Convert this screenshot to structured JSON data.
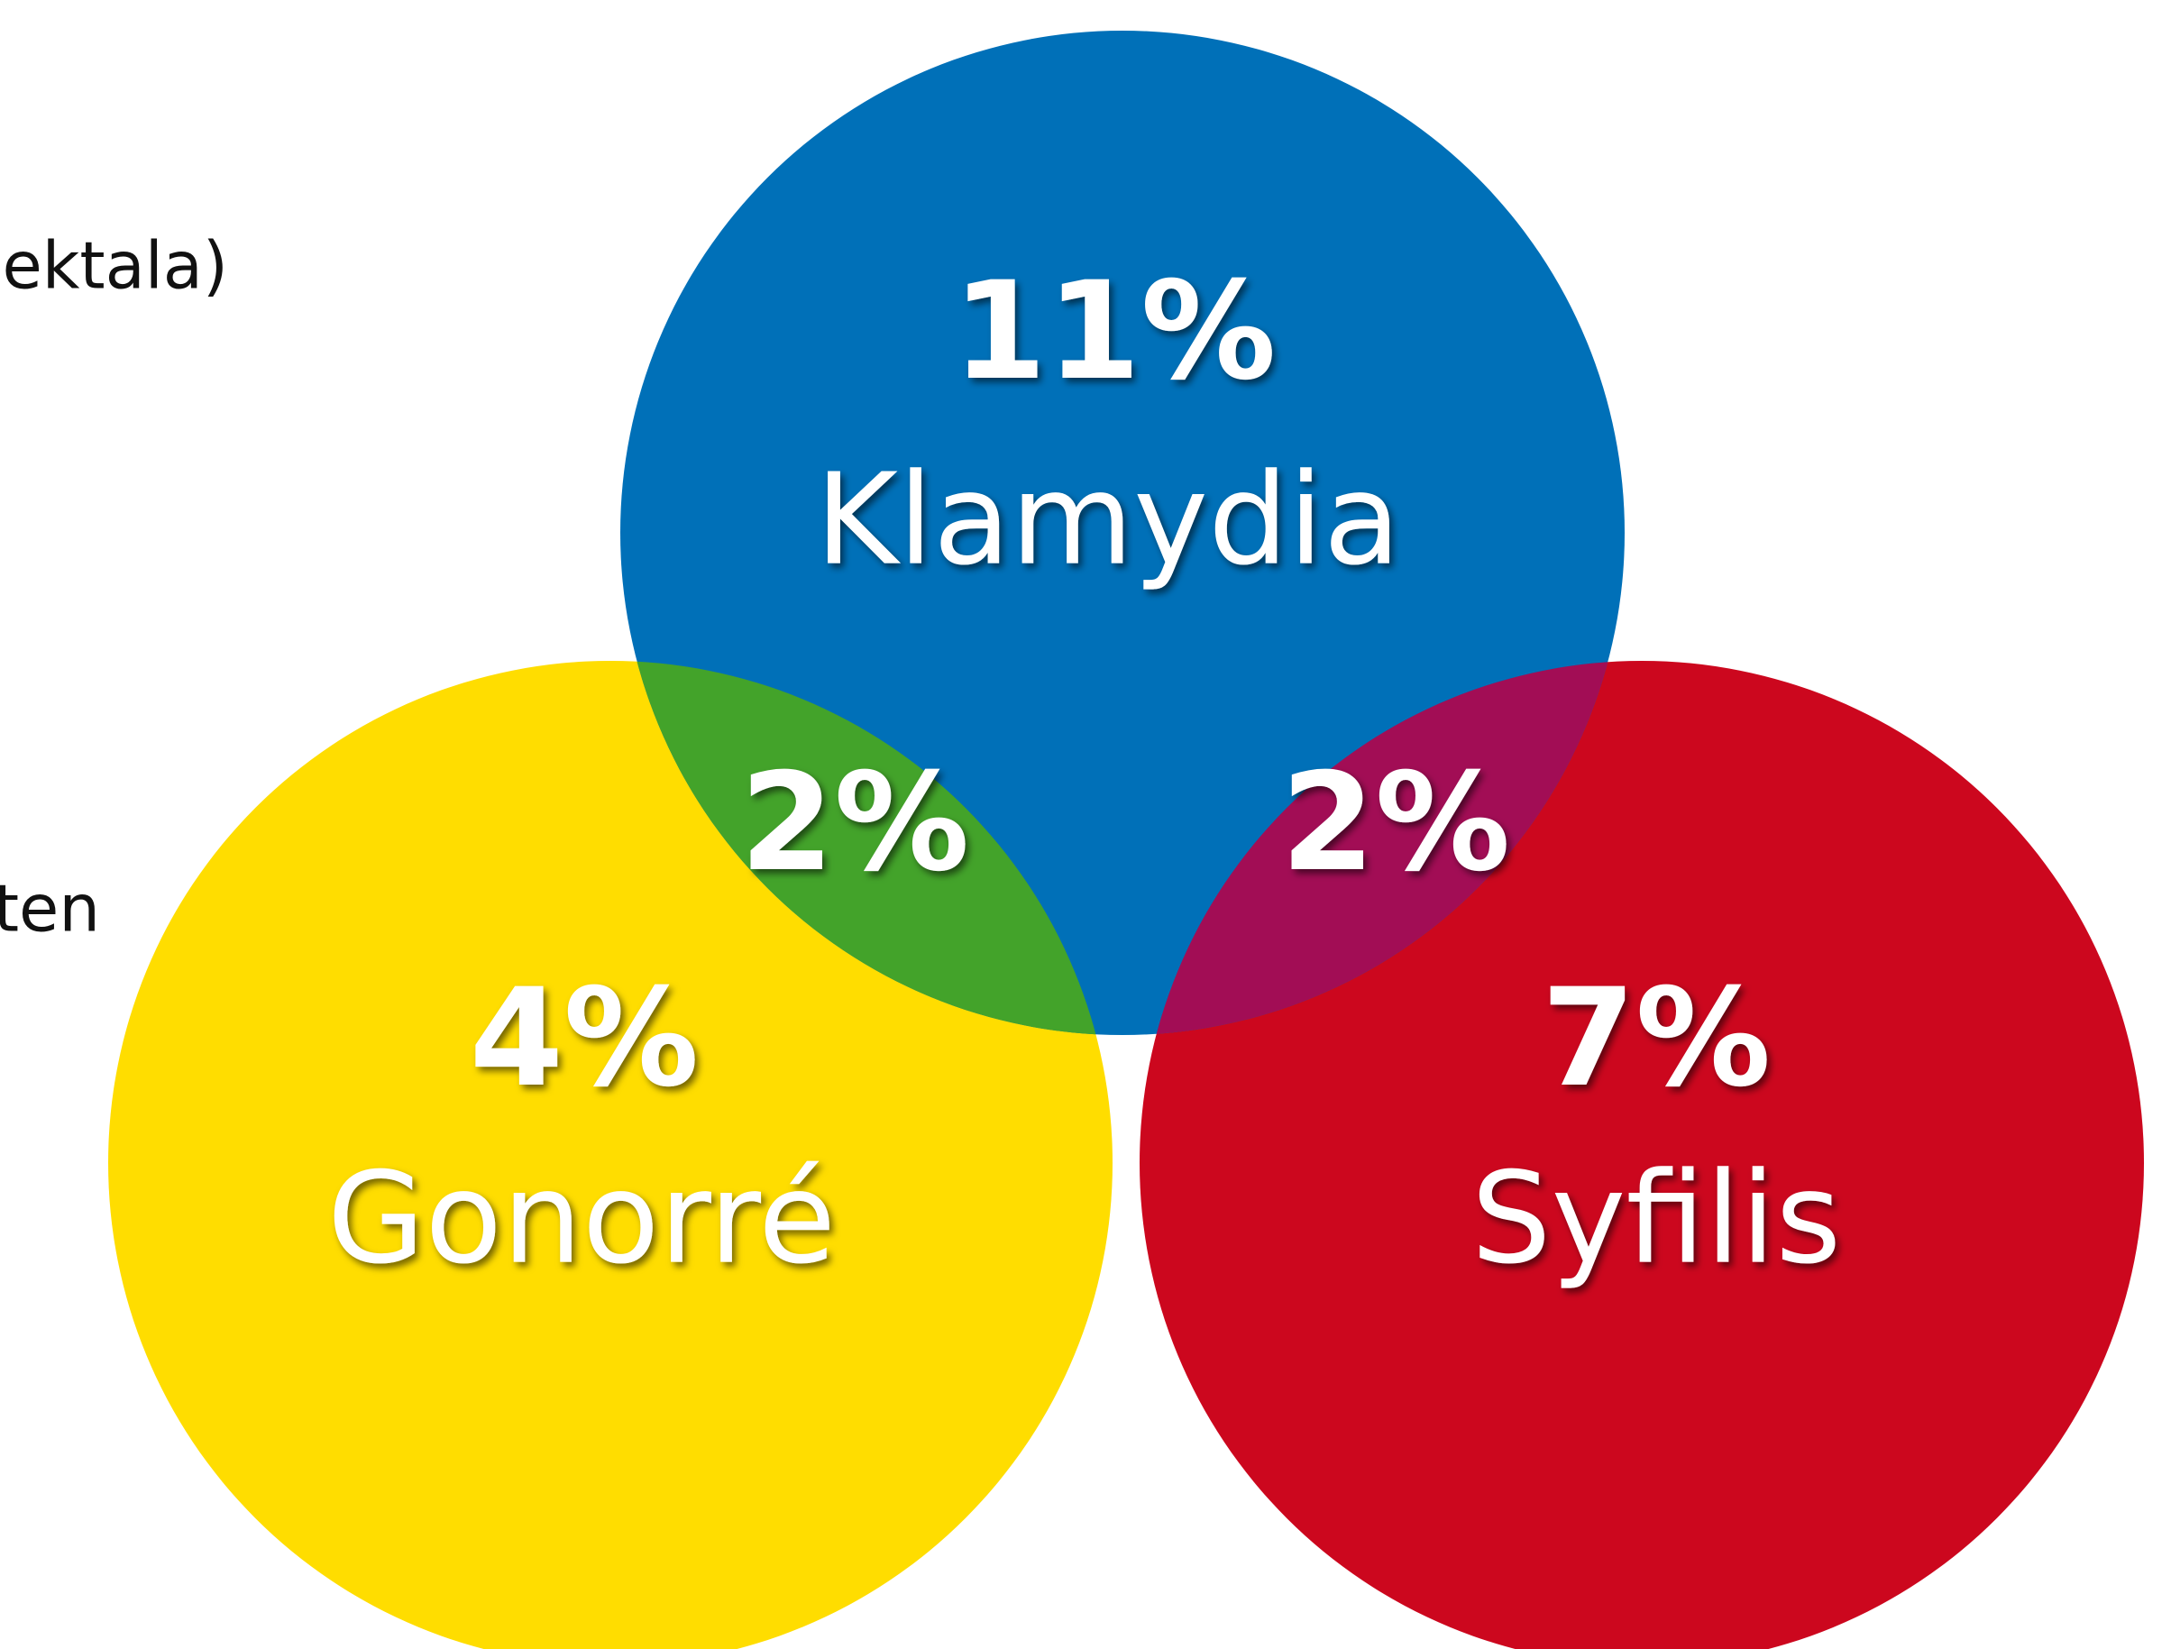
{
  "left_text": [
    "ektala)",
    "ten"
  ],
  "sets": [
    {
      "label": "Klamydia",
      "value": "11%",
      "color": "#0070b8"
    },
    {
      "label": "Gonorré",
      "value": "4%",
      "color": "#ffdd00"
    },
    {
      "label": "Syfilis",
      "value": "7%",
      "color": "#cc071e"
    }
  ],
  "overlaps": [
    {
      "sets": [
        "Klamydia",
        "Gonorré"
      ],
      "value": "2%",
      "color": "#43a32a"
    },
    {
      "sets": [
        "Klamydia",
        "Syfilis"
      ],
      "value": "2%",
      "color": "#a20d55"
    }
  ]
}
